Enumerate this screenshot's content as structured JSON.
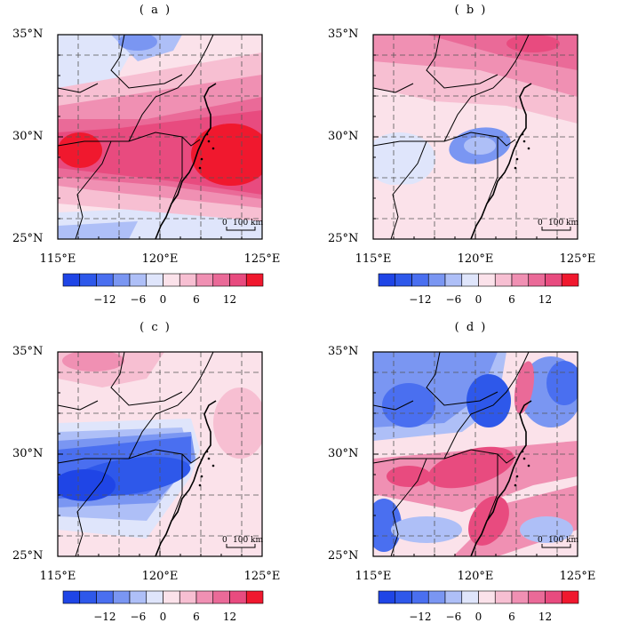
{
  "panels": [
    {
      "label": "( a )",
      "pattern": "a"
    },
    {
      "label": "( b )",
      "pattern": "b"
    },
    {
      "label": "( c )",
      "pattern": "c"
    },
    {
      "label": "( d )",
      "pattern": "d"
    }
  ],
  "axes": {
    "lat_labels": [
      "35°N",
      "30°N",
      "25°N"
    ],
    "lon_labels": [
      "115°E",
      "120°E",
      "125°E"
    ],
    "lat_range": [
      25,
      35
    ],
    "lon_range": [
      115,
      125
    ]
  },
  "scalebar": {
    "zero": "0",
    "label": "100 km"
  },
  "colorbar": {
    "ticks": [
      "−12",
      "−6",
      "0",
      "6",
      "12"
    ],
    "colors": [
      "#1f45e6",
      "#2e58ea",
      "#4a6ff0",
      "#7a96f2",
      "#aebff7",
      "#dfe5fb",
      "#fbe2ea",
      "#f7bfd2",
      "#f090b3",
      "#ea6a98",
      "#e84b7f",
      "#f0182e"
    ]
  }
}
